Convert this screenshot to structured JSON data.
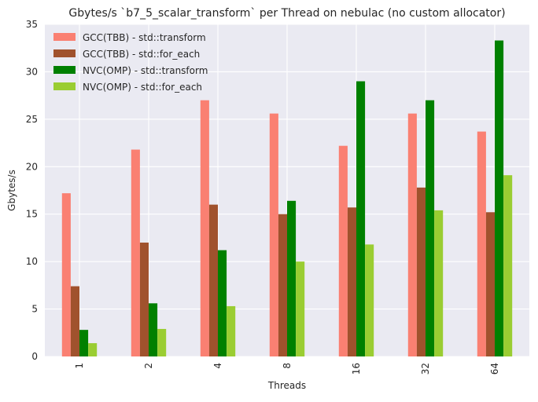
{
  "chart_data": {
    "type": "bar",
    "title": "Gbytes/s `b7_5_scalar_transform` per Thread on nebulac (no custom allocator)",
    "xlabel": "Threads",
    "ylabel": "Gbytes/s",
    "categories": [
      "1",
      "2",
      "4",
      "8",
      "16",
      "32",
      "64"
    ],
    "ylim": [
      0,
      35
    ],
    "yticks": [
      0,
      5,
      10,
      15,
      20,
      25,
      30,
      35
    ],
    "grid": true,
    "legend_position": "top-left",
    "series": [
      {
        "name": "GCC(TBB) - std::transform",
        "color": "#fa8072",
        "values": [
          17.2,
          21.8,
          27.0,
          25.6,
          22.2,
          25.6,
          23.7
        ]
      },
      {
        "name": "GCC(TBB) - std::for_each",
        "color": "#a0522d",
        "values": [
          7.4,
          12.0,
          16.0,
          15.0,
          15.7,
          17.8,
          15.2
        ]
      },
      {
        "name": "NVC(OMP) - std::transform",
        "color": "#008000",
        "values": [
          2.8,
          5.6,
          11.2,
          16.4,
          29.0,
          27.0,
          33.3
        ]
      },
      {
        "name": "NVC(OMP) - std::for_each",
        "color": "#9acd32",
        "values": [
          1.4,
          2.9,
          5.3,
          10.0,
          11.8,
          15.4,
          19.1
        ]
      }
    ]
  }
}
